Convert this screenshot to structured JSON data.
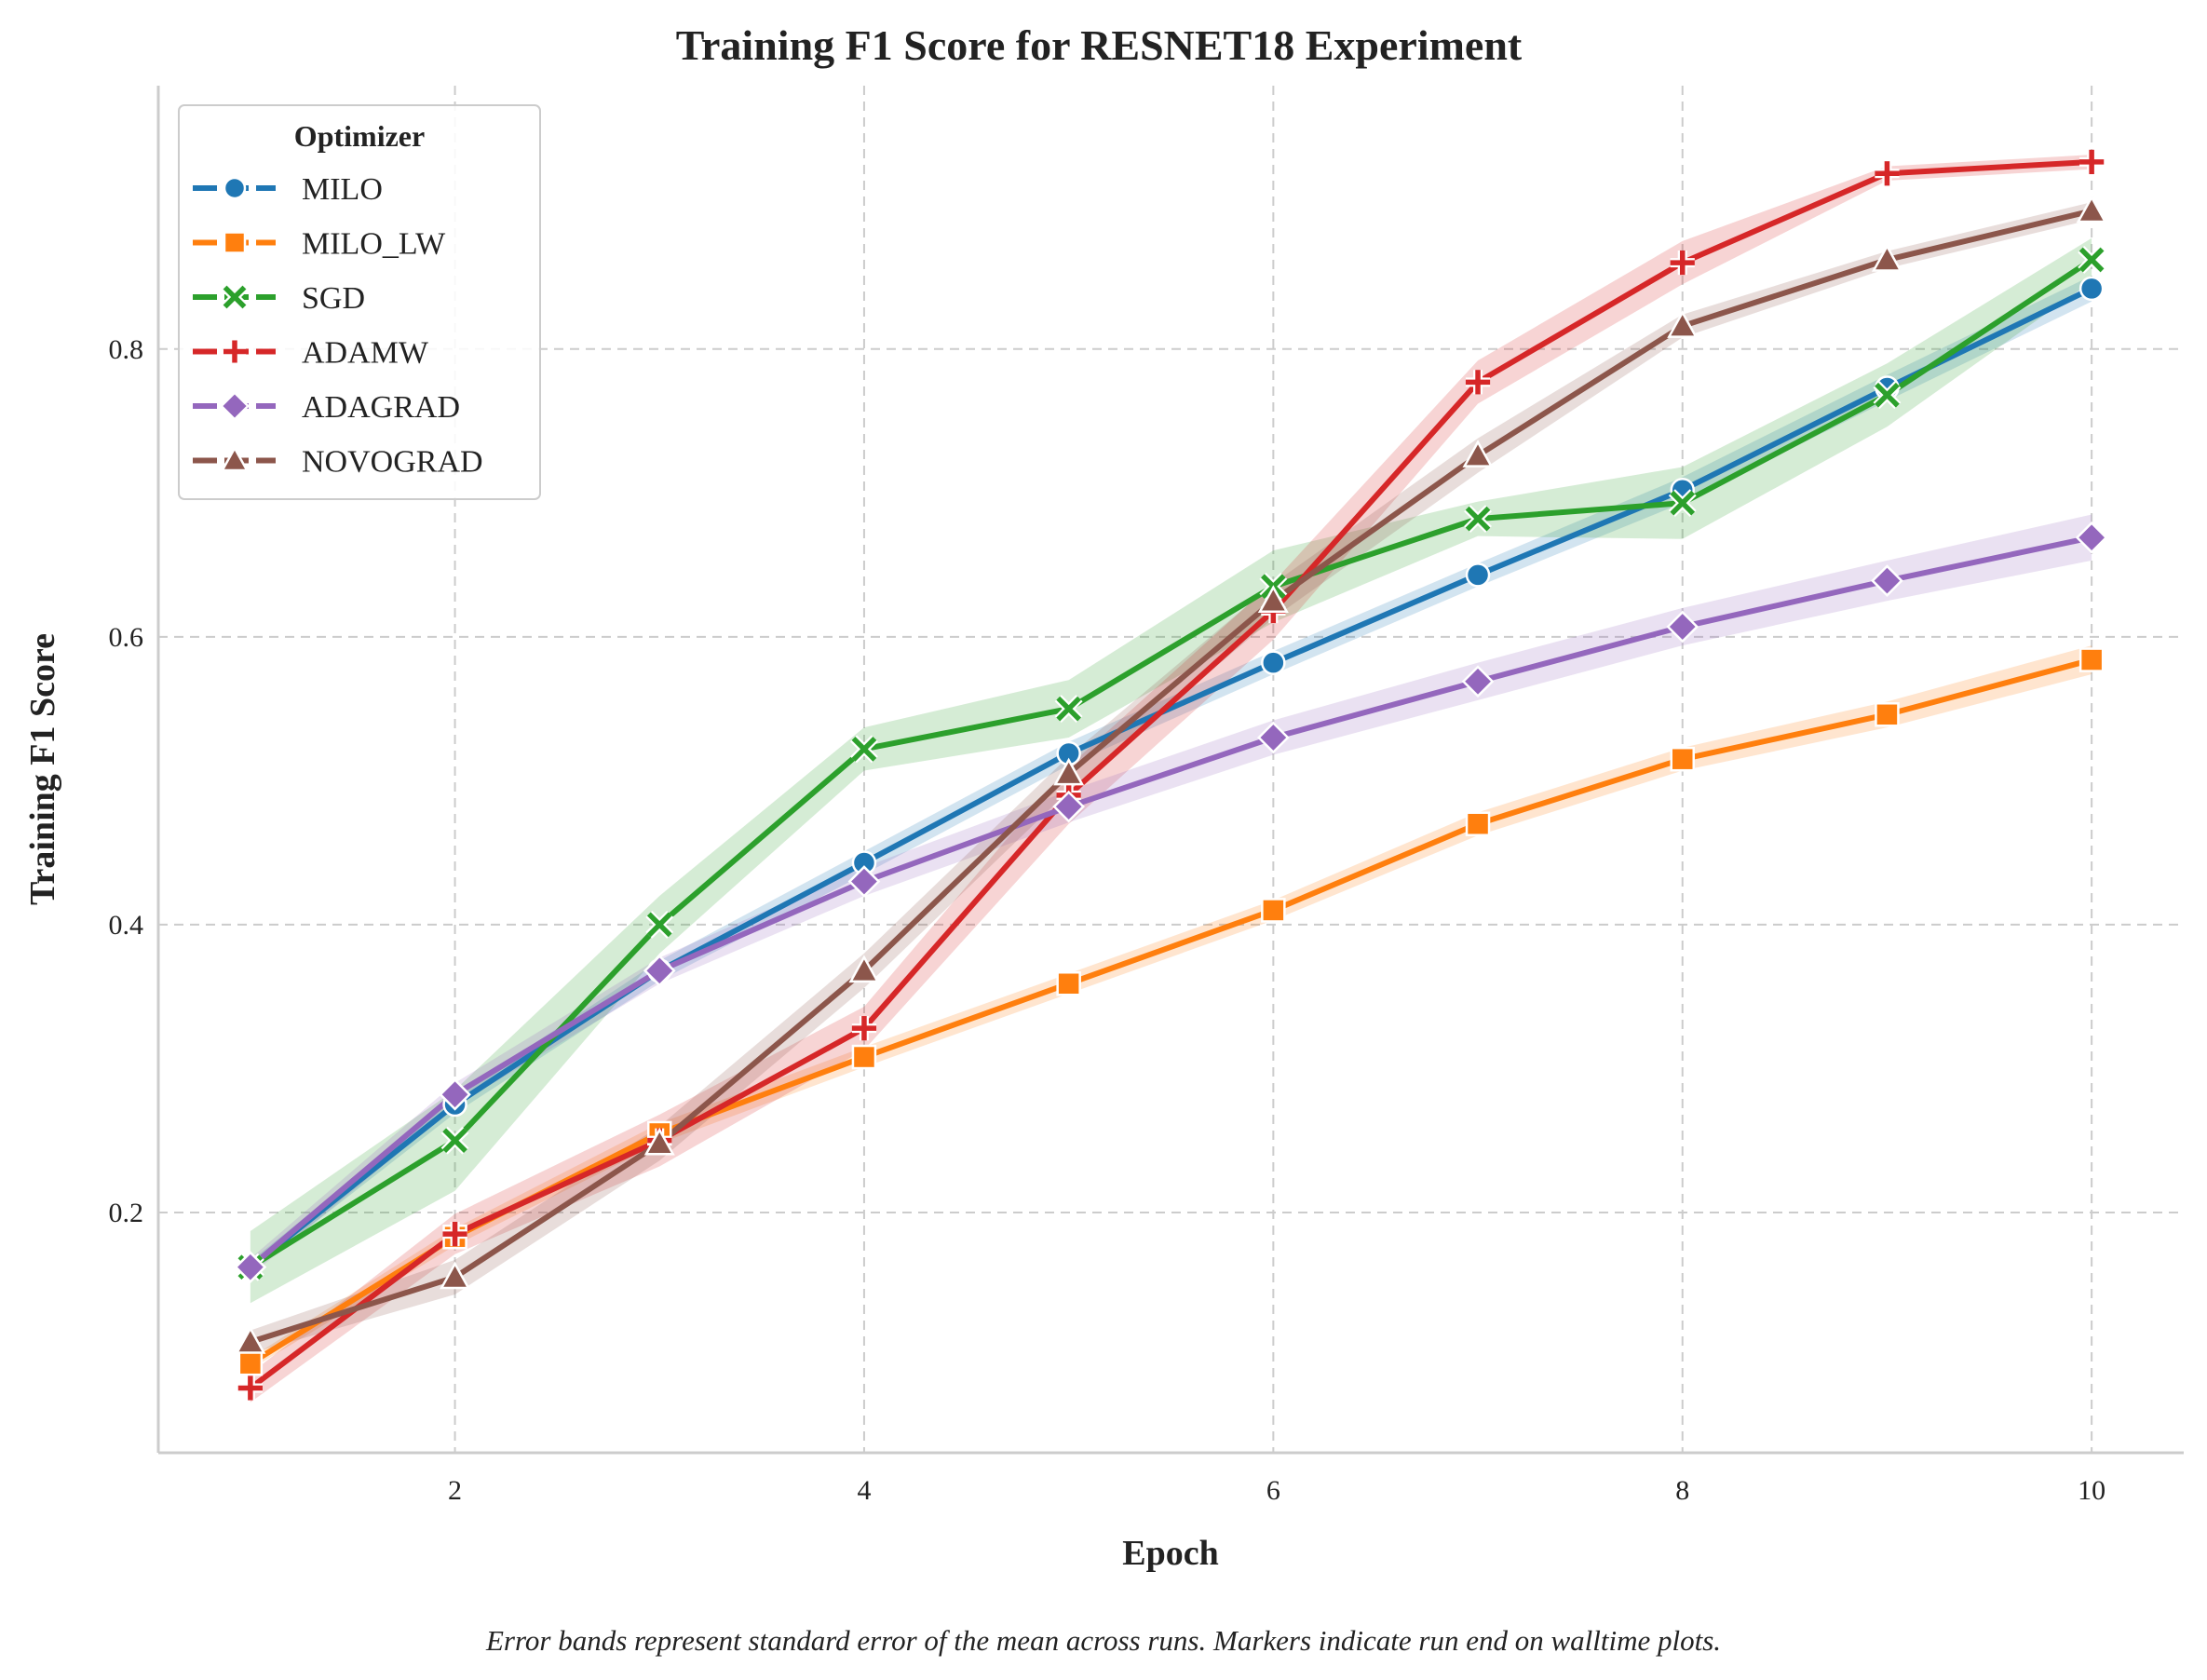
{
  "chart_data": {
    "type": "line",
    "title": "Training F1 Score for RESNET18 Experiment",
    "xlabel": "Epoch",
    "ylabel": "Training F1 Score",
    "xlim": [
      0.55,
      10.45
    ],
    "ylim": [
      0.033,
      0.983
    ],
    "xticks": [
      2,
      4,
      6,
      8,
      10
    ],
    "yticks": [
      0.2,
      0.4,
      0.6,
      0.8
    ],
    "grid": true,
    "legend": {
      "title": "Optimizer",
      "placement": "top-left"
    },
    "caption": "Error bands represent standard error of the mean across runs. Markers indicate run end on walltime plots.",
    "x": [
      1,
      2,
      3,
      4,
      5,
      6,
      7,
      8,
      9,
      10
    ],
    "series": [
      {
        "name": "MILO",
        "color": "#1f77b4",
        "marker": "circle",
        "values": [
          0.162,
          0.275,
          0.368,
          0.443,
          0.519,
          0.582,
          0.643,
          0.702,
          0.773,
          0.842
        ],
        "band": [
          0.004,
          0.006,
          0.007,
          0.008,
          0.008,
          0.008,
          0.008,
          0.009,
          0.009,
          0.009
        ]
      },
      {
        "name": "MILO_LW",
        "color": "#ff7f0e",
        "marker": "square",
        "values": [
          0.095,
          0.183,
          0.255,
          0.308,
          0.359,
          0.41,
          0.47,
          0.515,
          0.546,
          0.584
        ],
        "band": [
          0.004,
          0.006,
          0.007,
          0.007,
          0.007,
          0.007,
          0.008,
          0.008,
          0.009,
          0.01
        ]
      },
      {
        "name": "SGD",
        "color": "#2ca02c",
        "marker": "x",
        "values": [
          0.162,
          0.25,
          0.4,
          0.522,
          0.55,
          0.635,
          0.682,
          0.693,
          0.768,
          0.862
        ],
        "band": [
          0.025,
          0.035,
          0.02,
          0.015,
          0.02,
          0.025,
          0.012,
          0.025,
          0.022,
          0.015
        ]
      },
      {
        "name": "ADAMW",
        "color": "#d62728",
        "marker": "plus",
        "values": [
          0.078,
          0.185,
          0.25,
          0.328,
          0.49,
          0.618,
          0.777,
          0.86,
          0.922,
          0.93
        ],
        "band": [
          0.01,
          0.014,
          0.018,
          0.015,
          0.02,
          0.02,
          0.015,
          0.015,
          0.005,
          0.005
        ]
      },
      {
        "name": "ADAGRAD",
        "color": "#9467bd",
        "marker": "diamond",
        "values": [
          0.162,
          0.282,
          0.368,
          0.43,
          0.482,
          0.53,
          0.569,
          0.607,
          0.639,
          0.669
        ],
        "band": [
          0.006,
          0.008,
          0.009,
          0.01,
          0.011,
          0.012,
          0.013,
          0.013,
          0.014,
          0.016
        ]
      },
      {
        "name": "NOVOGRAD",
        "color": "#8c564b",
        "marker": "triangle",
        "values": [
          0.11,
          0.155,
          0.248,
          0.368,
          0.505,
          0.625,
          0.726,
          0.816,
          0.862,
          0.896
        ],
        "band": [
          0.008,
          0.012,
          0.012,
          0.012,
          0.012,
          0.012,
          0.012,
          0.008,
          0.006,
          0.006
        ]
      }
    ]
  }
}
